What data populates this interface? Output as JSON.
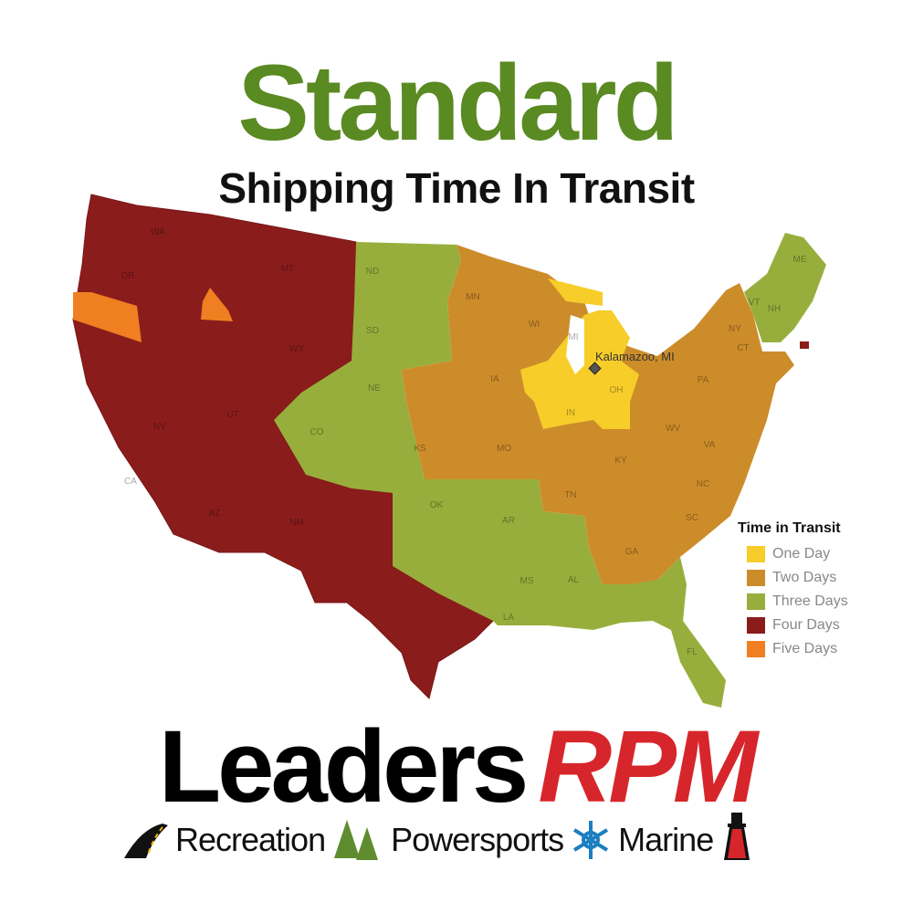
{
  "header": {
    "title": "Standard",
    "subtitle": "Shipping Time In Transit"
  },
  "map": {
    "origin_label": "Kalamazoo, MI",
    "state_labels": [
      "WA",
      "OR",
      "MT",
      "WY",
      "CA",
      "NV",
      "UT",
      "AZ",
      "NM",
      "CO",
      "ND",
      "SD",
      "NE",
      "KS",
      "OK",
      "MN",
      "WI",
      "IA",
      "MO",
      "MI",
      "IN",
      "OH",
      "KY",
      "TN",
      "AR",
      "MS",
      "AL",
      "LA",
      "GA",
      "SC",
      "NC",
      "VA",
      "WV",
      "PA",
      "NY",
      "VT",
      "NH",
      "ME",
      "CT",
      "FL"
    ],
    "colors": {
      "one_day": "#f7cd2a",
      "two_days": "#cd8c2a",
      "three_days": "#98ae3c",
      "four_days": "#8b1c1c",
      "five_days": "#f07f22"
    }
  },
  "legend": {
    "title": "Time in Transit",
    "items": [
      {
        "label": "One Day",
        "color": "#f7cd2a"
      },
      {
        "label": "Two Days",
        "color": "#cd8c2a"
      },
      {
        "label": "Three Days",
        "color": "#98ae3c"
      },
      {
        "label": "Four Days",
        "color": "#8b1c1c"
      },
      {
        "label": "Five Days",
        "color": "#f07f22"
      }
    ]
  },
  "brand": {
    "name_black": "Leaders",
    "name_red": "RPM",
    "tagline": [
      "Recreation",
      "Powersports",
      "Marine"
    ],
    "icons": [
      "road-icon",
      "pine-trees-icon",
      "snowflake-icon",
      "lighthouse-icon"
    ]
  }
}
